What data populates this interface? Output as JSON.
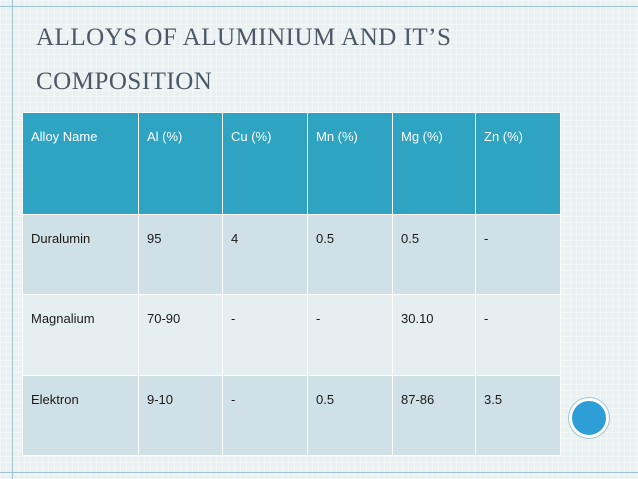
{
  "title": "ALLOYS OF ALUMINIUM AND IT’S COMPOSITION",
  "table": {
    "header": [
      "Alloy Name",
      "Al (%)",
      "Cu (%)",
      "Mn (%)",
      "Mg (%)",
      "Zn (%)"
    ],
    "rows": [
      [
        "Duralumin",
        "95",
        "4",
        "0.5",
        "0.5",
        "-"
      ],
      [
        "Magnalium",
        "70-90",
        "-",
        "-",
        "30.10",
        "-"
      ],
      [
        "Elektron",
        "9-10",
        "-",
        "0.5",
        "87-86",
        "3.5"
      ]
    ]
  }
}
